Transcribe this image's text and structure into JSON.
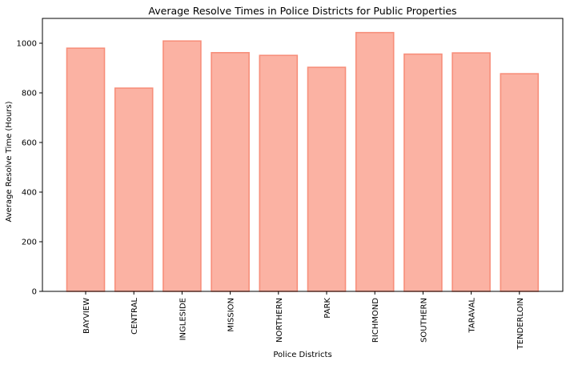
{
  "chart_data": {
    "type": "bar",
    "title": "Average Resolve Times in Police Districts for Public Properties",
    "xlabel": "Police Districts",
    "ylabel": "Average Resolve Time (Hours)",
    "categories": [
      "BAYVIEW",
      "CENTRAL",
      "INGLESIDE",
      "MISSION",
      "NORTHERN",
      "PARK",
      "RICHMOND",
      "SOUTHERN",
      "TARAVAL",
      "TENDERLOIN"
    ],
    "values": [
      980,
      819,
      1009,
      962,
      951,
      903,
      1043,
      956,
      961,
      877
    ],
    "ylim": [
      0,
      1100
    ],
    "yticks": [
      0,
      200,
      400,
      600,
      800,
      1000
    ],
    "grid": false,
    "legend": "none",
    "colors": {
      "bar_fill": "#fbb2a3",
      "bar_edge": "#f78f7b",
      "axis": "#000000"
    }
  }
}
